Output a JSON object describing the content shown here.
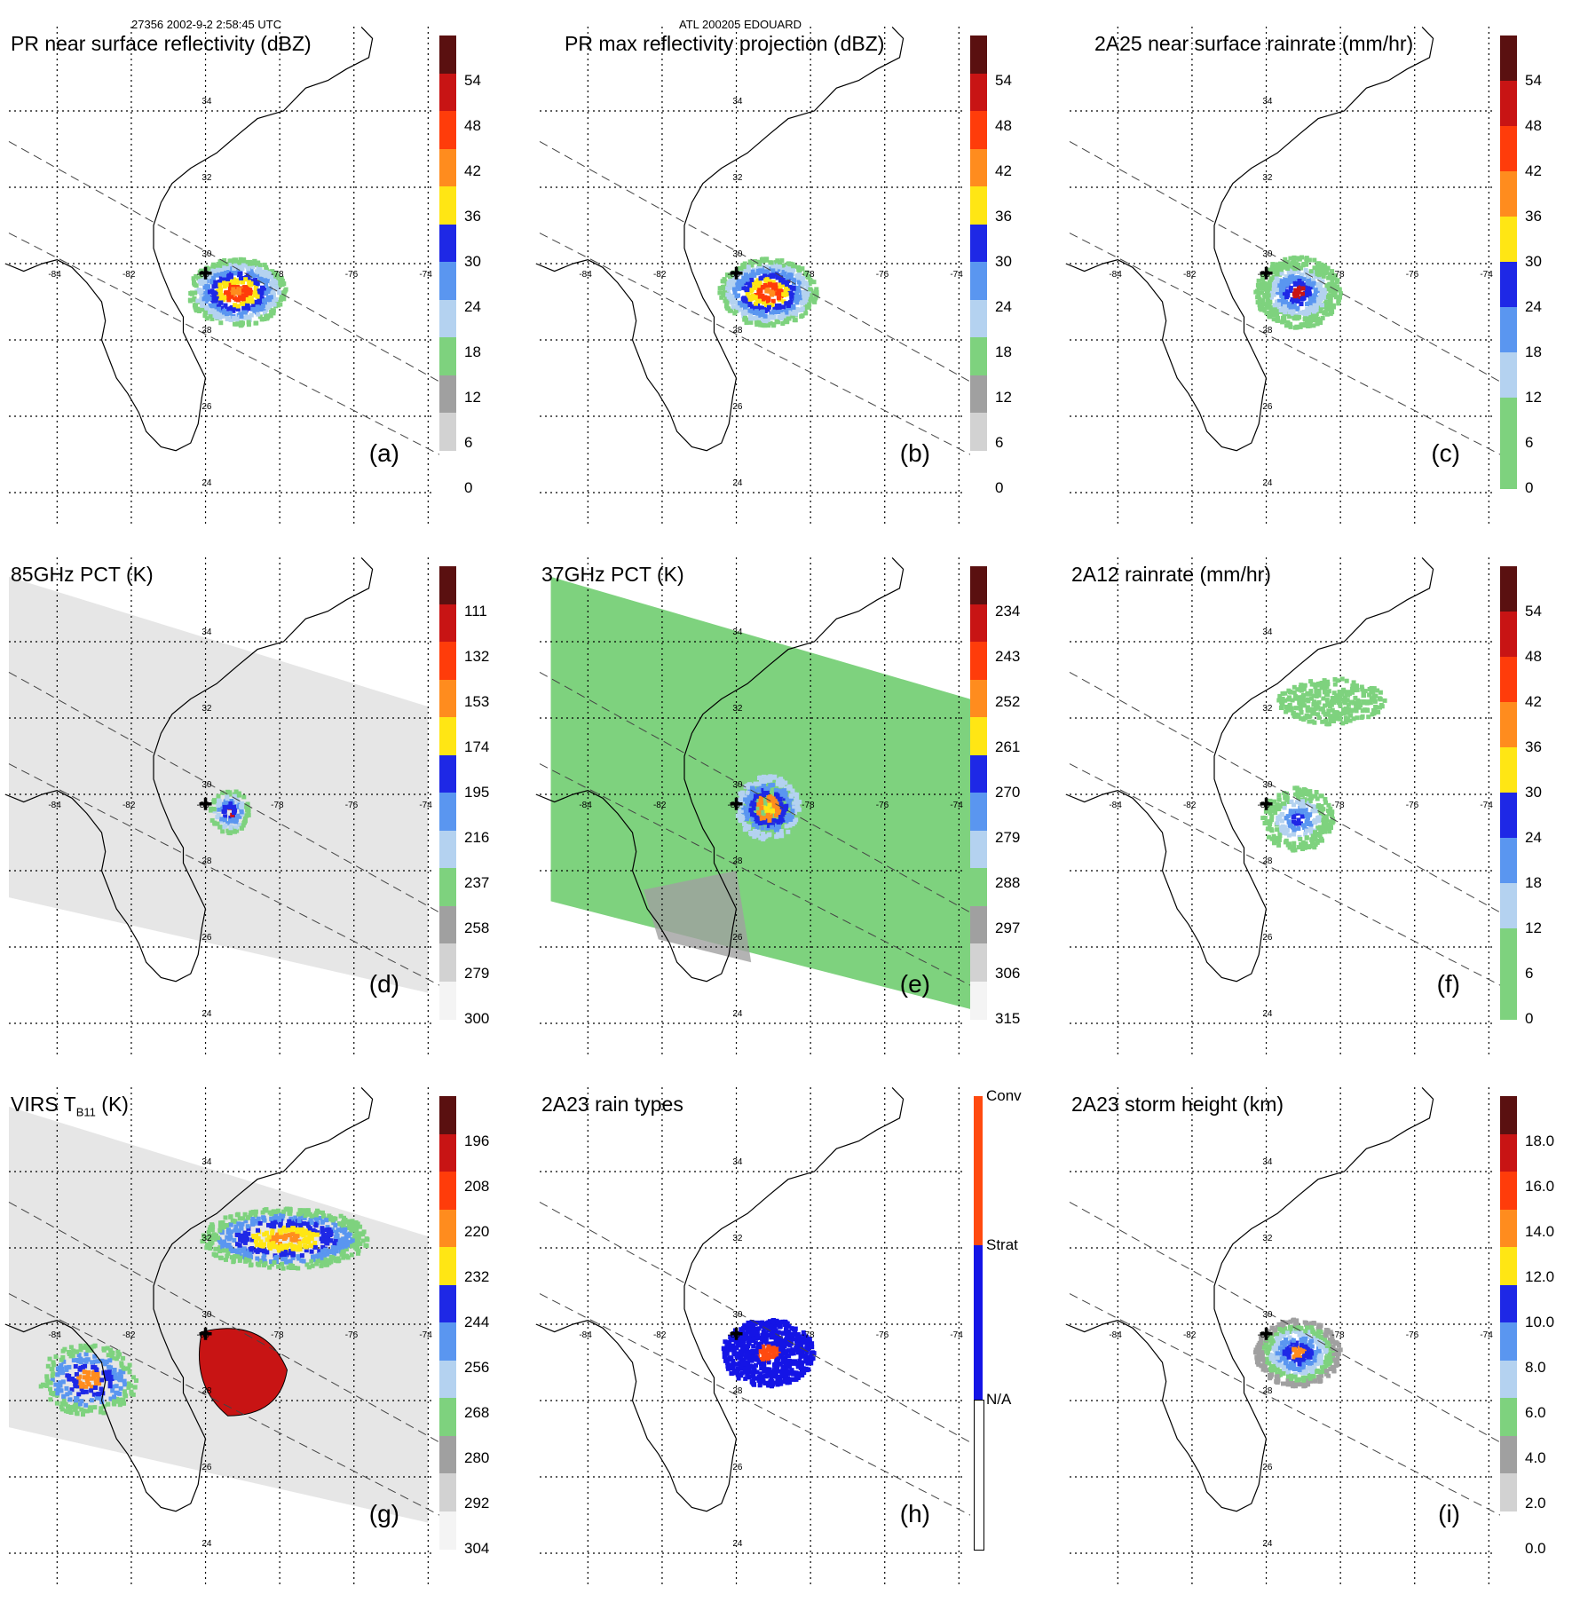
{
  "header": {
    "orbit_time": "27356 2002-9-2 2:58:45 UTC",
    "storm": "ATL 200205 EDOUARD"
  },
  "lon_labels": [
    "-84",
    "-82",
    "-80",
    "-78",
    "-76",
    "-74"
  ],
  "lat_labels": [
    "34",
    "32",
    "30",
    "28",
    "26",
    "24"
  ],
  "panels": [
    {
      "id": "a",
      "label": "(a)",
      "title": "PR near surface reflectivity (dBZ)",
      "field": "pr",
      "ticks": [
        "54",
        "48",
        "42",
        "36",
        "30",
        "24",
        "18",
        "12",
        "6",
        "0"
      ],
      "colors": [
        "#5a1010",
        "#c81414",
        "#ff3c0a",
        "#ff8c1e",
        "#ffe614",
        "#1e28e6",
        "#5a96f0",
        "#b4d2f0",
        "#7ed27e",
        "#a0a0a0",
        "#d2d2d2",
        "#ffffff"
      ]
    },
    {
      "id": "b",
      "label": "(b)",
      "title": "PR max reflectivity projection (dBZ)",
      "field": "pr",
      "ticks": [
        "54",
        "48",
        "42",
        "36",
        "30",
        "24",
        "18",
        "12",
        "6",
        "0"
      ],
      "colors": [
        "#5a1010",
        "#c81414",
        "#ff3c0a",
        "#ff8c1e",
        "#ffe614",
        "#1e28e6",
        "#5a96f0",
        "#b4d2f0",
        "#7ed27e",
        "#a0a0a0",
        "#d2d2d2",
        "#ffffff"
      ]
    },
    {
      "id": "c",
      "label": "(c)",
      "title": "2A25 near surface rainrate (mm/hr)",
      "field": "rain",
      "ticks": [
        "54",
        "48",
        "42",
        "36",
        "30",
        "24",
        "18",
        "12",
        "6",
        "0"
      ],
      "colors": [
        "#5a1010",
        "#c81414",
        "#ff3c0a",
        "#ff8c1e",
        "#ffe614",
        "#1e28e6",
        "#5a96f0",
        "#b4d2f0",
        "#7ed27e",
        "#7ed27e"
      ]
    },
    {
      "id": "d",
      "label": "(d)",
      "title": "85GHz PCT (K)",
      "field": "pct85",
      "ticks": [
        "111",
        "132",
        "153",
        "174",
        "195",
        "216",
        "237",
        "258",
        "279",
        "300"
      ],
      "colors": [
        "#5a1010",
        "#c81414",
        "#ff3c0a",
        "#ff8c1e",
        "#ffe614",
        "#1e28e6",
        "#5a96f0",
        "#b4d2f0",
        "#7ed27e",
        "#a0a0a0",
        "#d2d2d2",
        "#f4f4f4"
      ]
    },
    {
      "id": "e",
      "label": "(e)",
      "title": "37GHz PCT (K)",
      "field": "pct37",
      "ticks": [
        "234",
        "243",
        "252",
        "261",
        "270",
        "279",
        "288",
        "297",
        "306",
        "315"
      ],
      "colors": [
        "#5a1010",
        "#c81414",
        "#ff3c0a",
        "#ff8c1e",
        "#ffe614",
        "#1e28e6",
        "#5a96f0",
        "#b4d2f0",
        "#7ed27e",
        "#a0a0a0",
        "#d2d2d2",
        "#f4f4f4"
      ]
    },
    {
      "id": "f",
      "label": "(f)",
      "title": "2A12 rainrate (mm/hr)",
      "field": "rain12",
      "ticks": [
        "54",
        "48",
        "42",
        "36",
        "30",
        "24",
        "18",
        "12",
        "6",
        "0"
      ],
      "colors": [
        "#5a1010",
        "#c81414",
        "#ff3c0a",
        "#ff8c1e",
        "#ffe614",
        "#1e28e6",
        "#5a96f0",
        "#b4d2f0",
        "#7ed27e",
        "#7ed27e"
      ]
    },
    {
      "id": "g",
      "label": "(g)",
      "title_main": "VIRS T",
      "title_sub": "B11",
      "title_unit": " (K)",
      "field": "virs",
      "ticks": [
        "196",
        "208",
        "220",
        "232",
        "244",
        "256",
        "268",
        "280",
        "292",
        "304"
      ],
      "colors": [
        "#5a1010",
        "#c81414",
        "#ff3c0a",
        "#ff8c1e",
        "#ffe614",
        "#1e28e6",
        "#5a96f0",
        "#b4d2f0",
        "#7ed27e",
        "#a0a0a0",
        "#d2d2d2",
        "#f4f4f4"
      ]
    },
    {
      "id": "h",
      "label": "(h)",
      "title": "2A23 rain types",
      "field": "types",
      "ticks": [
        "Conv",
        "Strat",
        "N/A"
      ],
      "colors": [
        "#ff4a10",
        "#1414e6",
        "#ffffff"
      ]
    },
    {
      "id": "i",
      "label": "(i)",
      "title": "2A23 storm height (km)",
      "field": "height",
      "ticks": [
        "18.0",
        "16.0",
        "14.0",
        "12.0",
        "10.0",
        "8.0",
        "6.0",
        "4.0",
        "2.0",
        "0.0"
      ],
      "colors": [
        "#5a1010",
        "#c81414",
        "#ff3c0a",
        "#ff8c1e",
        "#ffe614",
        "#1e28e6",
        "#5a96f0",
        "#b4d2f0",
        "#7ed27e",
        "#a0a0a0",
        "#d2d2d2",
        "#ffffff"
      ]
    }
  ]
}
